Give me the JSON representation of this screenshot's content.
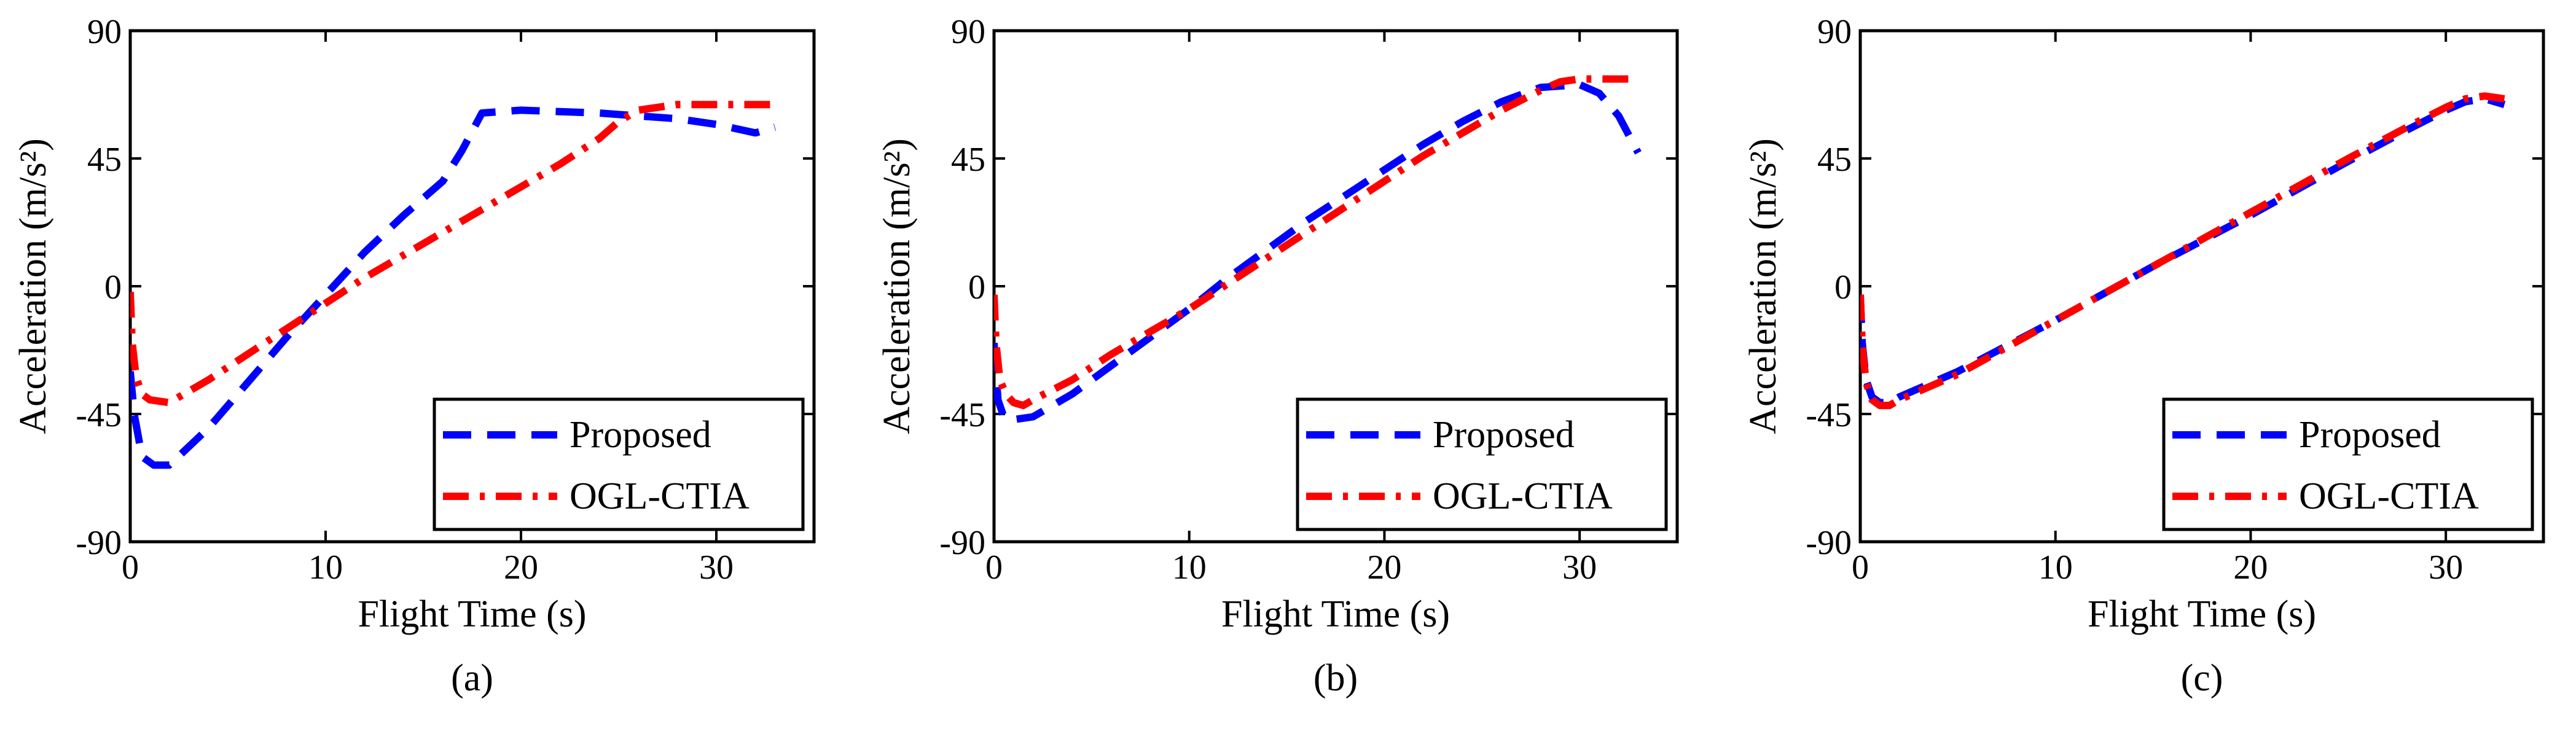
{
  "colors": {
    "proposed": "#0000ff",
    "ogl_ctia": "#ff0000",
    "axes": "#000000",
    "background": "#ffffff"
  },
  "chart_data": [
    {
      "type": "line",
      "caption": "(a)",
      "xlabel": "Flight Time (s)",
      "ylabel": "Acceleration (m/s²)",
      "xlim": [
        0,
        35
      ],
      "ylim": [
        -90,
        90
      ],
      "xticks": [
        0,
        10,
        20,
        30
      ],
      "yticks": [
        -90,
        -45,
        0,
        45,
        90
      ],
      "grid": false,
      "legend_position": "bottom-right",
      "series": [
        {
          "name": "Proposed",
          "style": "dashed",
          "x": [
            0,
            0.2,
            0.6,
            1.2,
            2.0,
            4.0,
            6.0,
            8.0,
            10.0,
            12.0,
            14.0,
            16.0,
            17.0,
            18.0,
            20.0,
            24.0,
            26.0,
            28.0,
            30.0,
            32.0,
            33.0
          ],
          "y": [
            -30,
            -45,
            -60,
            -63,
            -63,
            -50,
            -34,
            -18,
            -3,
            12,
            25,
            37,
            48,
            61,
            62,
            61,
            60,
            59,
            57,
            54,
            56
          ]
        },
        {
          "name": "OGL-CTIA",
          "style": "dashdot",
          "x": [
            0,
            0.1,
            0.3,
            0.6,
            1.0,
            2.0,
            4.0,
            6.0,
            8.0,
            10.0,
            12.0,
            14.0,
            16.0,
            18.0,
            20.0,
            22.0,
            24.0,
            25.0,
            26.0,
            28.0,
            30.0,
            33.0
          ],
          "y": [
            -2,
            -20,
            -32,
            -38,
            -40,
            -41,
            -33,
            -24,
            -15,
            -6,
            3,
            11,
            19,
            27,
            35,
            43,
            52,
            58,
            62,
            64,
            64,
            64
          ]
        }
      ]
    },
    {
      "type": "line",
      "caption": "(b)",
      "xlabel": "Flight Time (s)",
      "ylabel": "Acceleration (m/s²)",
      "xlim": [
        0,
        35
      ],
      "ylim": [
        -90,
        90
      ],
      "xticks": [
        0,
        10,
        20,
        30
      ],
      "yticks": [
        -90,
        -45,
        0,
        45,
        90
      ],
      "grid": false,
      "legend_position": "bottom-right",
      "series": [
        {
          "name": "Proposed",
          "style": "dashed",
          "x": [
            0,
            0.2,
            0.5,
            0.8,
            1.0,
            2.0,
            4.0,
            6.0,
            8.0,
            10.0,
            12.0,
            14.0,
            16.0,
            18.0,
            20.0,
            22.0,
            24.0,
            26.0,
            28.0,
            30.0,
            31.0,
            32.0,
            33.0
          ],
          "y": [
            -20,
            -40,
            -46,
            -47,
            -47,
            -46,
            -38,
            -28,
            -18,
            -8,
            3,
            13,
            23,
            32,
            41,
            50,
            58,
            65,
            70,
            71,
            68,
            60,
            47
          ]
        },
        {
          "name": "OGL-CTIA",
          "style": "dashdot",
          "x": [
            0,
            0.1,
            0.3,
            0.6,
            1.0,
            1.5,
            2.0,
            4.0,
            6.0,
            8.0,
            10.0,
            12.0,
            14.0,
            16.0,
            18.0,
            20.0,
            22.0,
            24.0,
            26.0,
            28.0,
            29.0,
            30.0,
            33.0
          ],
          "y": [
            -3,
            -20,
            -33,
            -38,
            -41,
            -42,
            -40,
            -33,
            -24,
            -16,
            -8,
            1,
            10,
            19,
            28,
            37,
            46,
            54,
            62,
            69,
            72,
            73,
            73
          ]
        }
      ]
    },
    {
      "type": "line",
      "caption": "(c)",
      "xlabel": "Flight Time (s)",
      "ylabel": "Acceleration (m/s²)",
      "xlim": [
        0,
        35
      ],
      "ylim": [
        -90,
        90
      ],
      "xticks": [
        0,
        10,
        20,
        30
      ],
      "yticks": [
        -90,
        -45,
        0,
        45,
        90
      ],
      "grid": false,
      "legend_position": "bottom-right",
      "series": [
        {
          "name": "Proposed",
          "style": "dashed",
          "x": [
            0,
            0.1,
            0.3,
            0.6,
            1.0,
            1.5,
            2.0,
            5.0,
            10.0,
            15.0,
            20.0,
            25.0,
            28.0,
            30.0,
            31.0,
            32.0,
            33.0
          ],
          "y": [
            -3,
            -20,
            -33,
            -39,
            -41,
            -41,
            -39,
            -30,
            -12,
            7,
            25,
            44,
            55,
            62,
            65,
            66,
            64
          ]
        },
        {
          "name": "OGL-CTIA",
          "style": "dashdot",
          "x": [
            0,
            0.1,
            0.3,
            0.6,
            1.0,
            1.5,
            2.0,
            5.0,
            10.0,
            15.0,
            20.0,
            25.0,
            28.0,
            30.0,
            31.0,
            32.0,
            33.0
          ],
          "y": [
            -3,
            -21,
            -34,
            -40,
            -42,
            -42,
            -40,
            -31,
            -12,
            7,
            26,
            45,
            56,
            63,
            66,
            67,
            66
          ]
        }
      ]
    }
  ]
}
